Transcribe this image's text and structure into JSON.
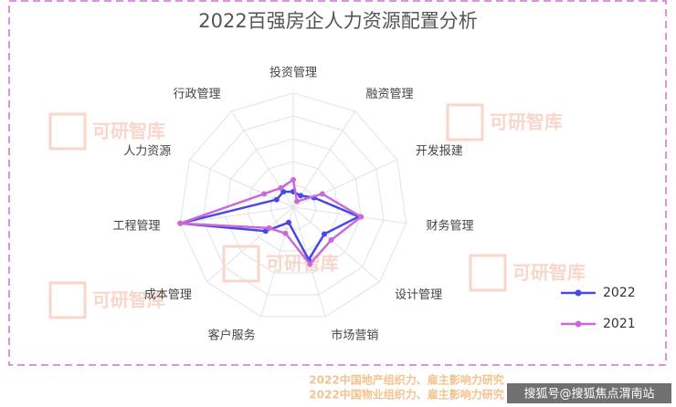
{
  "chart_data": {
    "type": "radar",
    "title": "2022百强房企人力资源配置分析",
    "categories": [
      "投资管理",
      "融资管理",
      "开发报建",
      "财务管理",
      "设计管理",
      "市场营销",
      "客户服务",
      "成本管理",
      "工程管理",
      "人力资源",
      "行政管理"
    ],
    "series": [
      {
        "name": "2022",
        "color": "#4848e8",
        "values": [
          3.4,
          3,
          5,
          14.5,
          9,
          12,
          3.5,
          8,
          25,
          4,
          4
        ]
      },
      {
        "name": "2021",
        "color": "#c96ad6",
        "values": [
          6,
          1.5,
          7,
          15,
          11,
          13,
          6,
          7,
          25,
          7,
          5
        ]
      }
    ],
    "rlim": [
      0,
      25
    ],
    "rticks": [
      5,
      10,
      15,
      20,
      25
    ],
    "grid": true,
    "legend": "lower right",
    "watermark": "可研智库",
    "footer": [
      "2022中国地产组织力、雇主影响力研究",
      "2022中国物业组织力、雇主影响力研究"
    ],
    "source": "搜狐号@搜狐焦点渭南站"
  }
}
